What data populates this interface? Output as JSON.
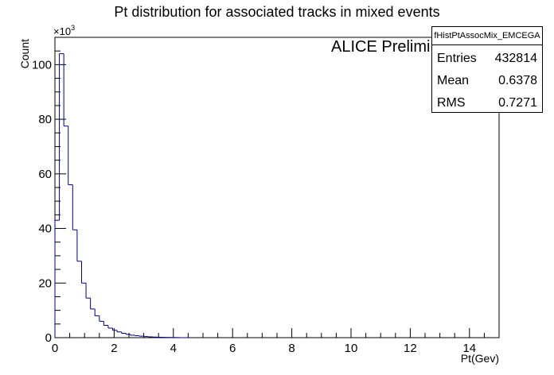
{
  "title": "Pt distribution for associated tracks in mixed events",
  "annotation": "ALICE Preliminary",
  "stats": {
    "name": "fHistPtAssocMix_EMCEGA",
    "rows": [
      {
        "key": "Entries",
        "value": "432814"
      },
      {
        "key": "Mean",
        "value": "0.6378"
      },
      {
        "key": "RMS",
        "value": "0.7271"
      }
    ]
  },
  "colors": {
    "line": "#000080",
    "axis": "#000000"
  },
  "chart_data": {
    "type": "bar",
    "title": "Pt distribution for associated tracks in mixed events",
    "xlabel": "Pt(Gev)",
    "ylabel": "Count",
    "y_multiplier_label": "×10",
    "y_multiplier_exp": "3",
    "xlim": [
      0,
      15
    ],
    "ylim": [
      0,
      110
    ],
    "bin_width": 0.15,
    "x_ticks": [
      0,
      2,
      4,
      6,
      8,
      10,
      12,
      14
    ],
    "y_ticks": [
      0,
      20,
      40,
      60,
      80,
      100
    ],
    "grid": false,
    "values": [
      43,
      104,
      77.5,
      56,
      39.5,
      28,
      20,
      14.5,
      10.5,
      8,
      6,
      4.5,
      3.5,
      2.7,
      2.1,
      1.6,
      1.2,
      0.9,
      0.7,
      0.55,
      0.4,
      0.3,
      0.22,
      0.16,
      0.12,
      0.09,
      0.07,
      0.05,
      0,
      0
    ]
  }
}
